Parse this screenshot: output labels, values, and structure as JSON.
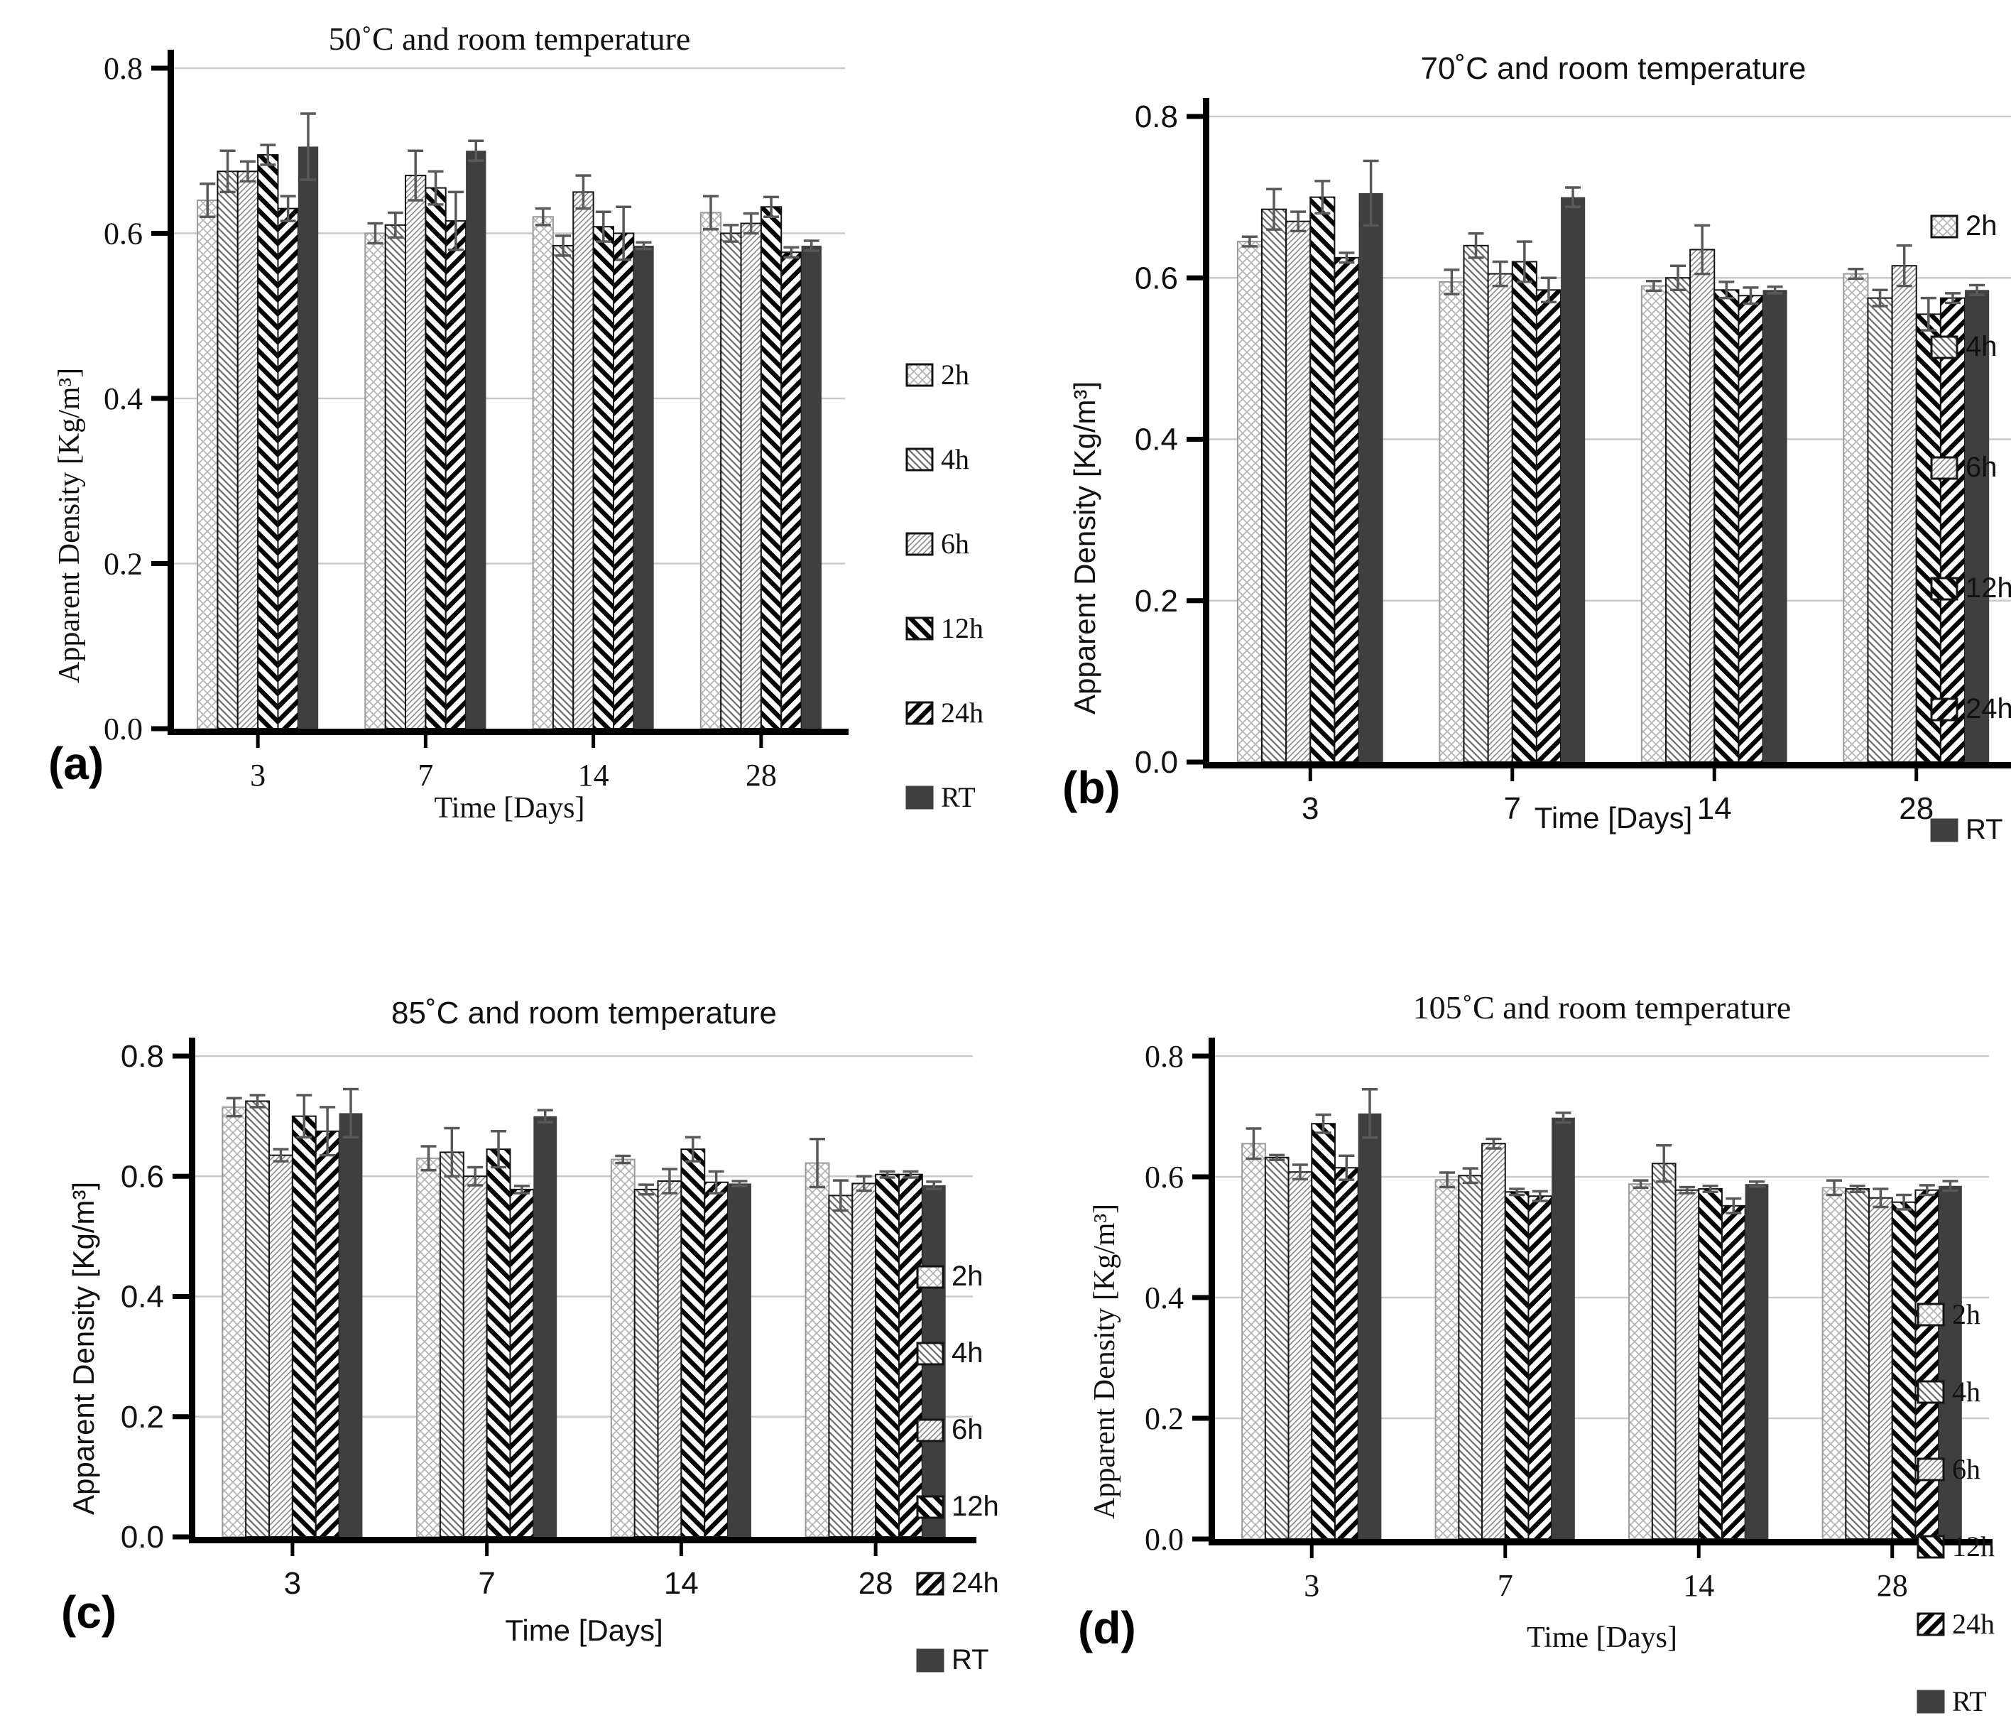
{
  "figure": {
    "background": "#ffffff"
  },
  "style": {
    "bar_solid": "#3f3f3f",
    "hatch_dark": "#000000",
    "hatch_mid": "#6a6a6a",
    "hatch_soft": "#8c8c8c",
    "hatch_light": "#b5b5b5",
    "error_color": "#595959",
    "grid_color": "#c9c9c9",
    "axis_color": "#000000"
  },
  "chart_data": [
    {
      "type": "bar",
      "panel_label": "(a)",
      "title": "50˚C and room temperature",
      "xlabel": "Time [Days]",
      "ylabel": "Apparent Density [Kg/m³]",
      "ylim": [
        0.0,
        0.8
      ],
      "yticks": [
        0.0,
        0.2,
        0.4,
        0.6,
        0.8
      ],
      "grid": true,
      "legend_position": "middle-right",
      "categories": [
        "3",
        "7",
        "14",
        "28"
      ],
      "series": [
        {
          "name": "2h",
          "pattern": "diamond-crosshatch",
          "values": [
            0.64,
            0.6,
            0.62,
            0.625
          ],
          "errors": [
            0.02,
            0.012,
            0.01,
            0.02
          ]
        },
        {
          "name": "4h",
          "pattern": "thin-diagonal-down",
          "values": [
            0.675,
            0.61,
            0.585,
            0.6
          ],
          "errors": [
            0.025,
            0.015,
            0.012,
            0.01
          ]
        },
        {
          "name": "6h",
          "pattern": "thin-diagonal-up",
          "values": [
            0.675,
            0.67,
            0.65,
            0.612
          ],
          "errors": [
            0.012,
            0.03,
            0.02,
            0.012
          ]
        },
        {
          "name": "12h",
          "pattern": "bold-diagonal-down",
          "values": [
            0.695,
            0.655,
            0.608,
            0.632
          ],
          "errors": [
            0.012,
            0.02,
            0.018,
            0.012
          ]
        },
        {
          "name": "24h",
          "pattern": "bold-diagonal-up",
          "values": [
            0.63,
            0.615,
            0.6,
            0.577
          ],
          "errors": [
            0.015,
            0.035,
            0.032,
            0.006
          ]
        },
        {
          "name": "RT",
          "pattern": "solid",
          "values": [
            0.705,
            0.7,
            0.585,
            0.585
          ],
          "errors": [
            0.04,
            0.012,
            0.004,
            0.006
          ]
        }
      ]
    },
    {
      "type": "bar",
      "panel_label": "(b)",
      "title": "70˚C and room temperature",
      "xlabel": "Time [Days]",
      "ylabel": "Apparent Density [Kg/m³]",
      "ylim": [
        0.0,
        0.8
      ],
      "yticks": [
        0.0,
        0.2,
        0.4,
        0.6,
        0.8
      ],
      "grid": true,
      "legend_position": "spread-right",
      "categories": [
        "3",
        "7",
        "14",
        "28"
      ],
      "series": [
        {
          "name": "2h",
          "pattern": "diamond-crosshatch",
          "values": [
            0.645,
            0.595,
            0.59,
            0.605
          ],
          "errors": [
            0.006,
            0.015,
            0.006,
            0.006
          ]
        },
        {
          "name": "4h",
          "pattern": "thin-diagonal-down",
          "values": [
            0.685,
            0.64,
            0.6,
            0.575
          ],
          "errors": [
            0.025,
            0.015,
            0.015,
            0.01
          ]
        },
        {
          "name": "6h",
          "pattern": "thin-diagonal-up",
          "values": [
            0.67,
            0.605,
            0.635,
            0.615
          ],
          "errors": [
            0.012,
            0.015,
            0.03,
            0.025
          ]
        },
        {
          "name": "12h",
          "pattern": "bold-diagonal-down",
          "values": [
            0.7,
            0.62,
            0.585,
            0.555
          ],
          "errors": [
            0.02,
            0.025,
            0.01,
            0.02
          ]
        },
        {
          "name": "24h",
          "pattern": "bold-diagonal-up",
          "values": [
            0.625,
            0.585,
            0.578,
            0.575
          ],
          "errors": [
            0.006,
            0.015,
            0.01,
            0.006
          ]
        },
        {
          "name": "RT",
          "pattern": "solid",
          "values": [
            0.705,
            0.7,
            0.585,
            0.585
          ],
          "errors": [
            0.04,
            0.012,
            0.004,
            0.006
          ]
        }
      ]
    },
    {
      "type": "bar",
      "panel_label": "(c)",
      "title": "85˚C and room temperature",
      "xlabel": "Time [Days]",
      "ylabel": "Apparent Density [Kg/m³]",
      "ylim": [
        0.0,
        0.8
      ],
      "yticks": [
        0.0,
        0.2,
        0.4,
        0.6,
        0.8
      ],
      "grid": true,
      "legend_position": "lower-right",
      "categories": [
        "3",
        "7",
        "14",
        "28"
      ],
      "series": [
        {
          "name": "2h",
          "pattern": "diamond-crosshatch",
          "values": [
            0.715,
            0.63,
            0.628,
            0.622
          ],
          "errors": [
            0.015,
            0.02,
            0.006,
            0.04
          ]
        },
        {
          "name": "4h",
          "pattern": "thin-diagonal-down",
          "values": [
            0.725,
            0.64,
            0.578,
            0.568
          ],
          "errors": [
            0.01,
            0.04,
            0.008,
            0.025
          ]
        },
        {
          "name": "6h",
          "pattern": "thin-diagonal-up",
          "values": [
            0.635,
            0.6,
            0.592,
            0.588
          ],
          "errors": [
            0.01,
            0.015,
            0.02,
            0.012
          ]
        },
        {
          "name": "12h",
          "pattern": "bold-diagonal-down",
          "values": [
            0.7,
            0.645,
            0.645,
            0.603
          ],
          "errors": [
            0.035,
            0.03,
            0.02,
            0.005
          ]
        },
        {
          "name": "24h",
          "pattern": "bold-diagonal-up",
          "values": [
            0.675,
            0.578,
            0.59,
            0.603
          ],
          "errors": [
            0.04,
            0.006,
            0.018,
            0.005
          ]
        },
        {
          "name": "RT",
          "pattern": "solid",
          "values": [
            0.705,
            0.7,
            0.588,
            0.585
          ],
          "errors": [
            0.04,
            0.01,
            0.004,
            0.006
          ]
        }
      ]
    },
    {
      "type": "bar",
      "panel_label": "(d)",
      "title": "105˚C and room temperature",
      "xlabel": "Time [Days]",
      "ylabel": "Apparent Density [Kg/m³]",
      "ylim": [
        0.0,
        0.8
      ],
      "yticks": [
        0.0,
        0.2,
        0.4,
        0.6,
        0.8
      ],
      "grid": true,
      "legend_position": "lower-right",
      "categories": [
        "3",
        "7",
        "14",
        "28"
      ],
      "series": [
        {
          "name": "2h",
          "pattern": "diamond-crosshatch",
          "values": [
            0.655,
            0.595,
            0.588,
            0.582
          ],
          "errors": [
            0.025,
            0.012,
            0.006,
            0.012
          ]
        },
        {
          "name": "4h",
          "pattern": "thin-diagonal-down",
          "values": [
            0.632,
            0.602,
            0.622,
            0.58
          ],
          "errors": [
            0.004,
            0.012,
            0.03,
            0.005
          ]
        },
        {
          "name": "6h",
          "pattern": "thin-diagonal-up",
          "values": [
            0.608,
            0.655,
            0.578,
            0.565
          ],
          "errors": [
            0.012,
            0.008,
            0.005,
            0.015
          ]
        },
        {
          "name": "12h",
          "pattern": "bold-diagonal-down",
          "values": [
            0.688,
            0.575,
            0.58,
            0.558
          ],
          "errors": [
            0.015,
            0.005,
            0.005,
            0.012
          ]
        },
        {
          "name": "24h",
          "pattern": "bold-diagonal-up",
          "values": [
            0.615,
            0.568,
            0.552,
            0.578
          ],
          "errors": [
            0.02,
            0.008,
            0.012,
            0.008
          ]
        },
        {
          "name": "RT",
          "pattern": "solid",
          "values": [
            0.705,
            0.698,
            0.588,
            0.585
          ],
          "errors": [
            0.04,
            0.008,
            0.004,
            0.008
          ]
        }
      ]
    }
  ]
}
